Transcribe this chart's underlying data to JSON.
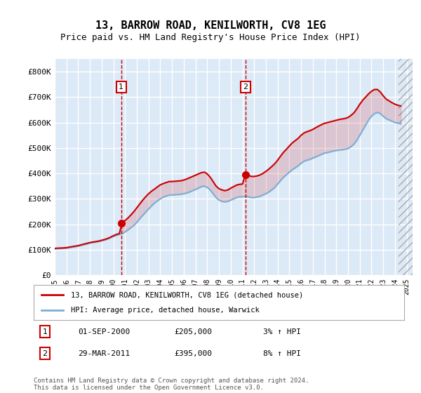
{
  "title": "13, BARROW ROAD, KENILWORTH, CV8 1EG",
  "subtitle": "Price paid vs. HM Land Registry's House Price Index (HPI)",
  "ylabel_ticks": [
    "£0",
    "£100K",
    "£200K",
    "£300K",
    "£400K",
    "£500K",
    "£600K",
    "£700K",
    "£800K"
  ],
  "ytick_values": [
    0,
    100000,
    200000,
    300000,
    400000,
    500000,
    600000,
    700000,
    800000
  ],
  "ylim": [
    0,
    850000
  ],
  "xlim_start": 1995.0,
  "xlim_end": 2025.5,
  "background_color": "#ffffff",
  "plot_bg_color": "#dce9f7",
  "grid_color": "#ffffff",
  "line1_color": "#cc0000",
  "line2_color": "#7ab0d4",
  "transaction1_date": 2000.67,
  "transaction1_price": 205000,
  "transaction2_date": 2011.25,
  "transaction2_price": 395000,
  "legend_label1": "13, BARROW ROAD, KENILWORTH, CV8 1EG (detached house)",
  "legend_label2": "HPI: Average price, detached house, Warwick",
  "annotation1_label": "1",
  "annotation1_date": "01-SEP-2000",
  "annotation1_price": "£205,000",
  "annotation1_hpi": "3% ↑ HPI",
  "annotation2_label": "2",
  "annotation2_date": "29-MAR-2011",
  "annotation2_price": "£395,000",
  "annotation2_hpi": "8% ↑ HPI",
  "footer": "Contains HM Land Registry data © Crown copyright and database right 2024.\nThis data is licensed under the Open Government Licence v3.0.",
  "hpi_years": [
    1995.0,
    1995.25,
    1995.5,
    1995.75,
    1996.0,
    1996.25,
    1996.5,
    1996.75,
    1997.0,
    1997.25,
    1997.5,
    1997.75,
    1998.0,
    1998.25,
    1998.5,
    1998.75,
    1999.0,
    1999.25,
    1999.5,
    1999.75,
    2000.0,
    2000.25,
    2000.5,
    2000.75,
    2001.0,
    2001.25,
    2001.5,
    2001.75,
    2002.0,
    2002.25,
    2002.5,
    2002.75,
    2003.0,
    2003.25,
    2003.5,
    2003.75,
    2004.0,
    2004.25,
    2004.5,
    2004.75,
    2005.0,
    2005.25,
    2005.5,
    2005.75,
    2006.0,
    2006.25,
    2006.5,
    2006.75,
    2007.0,
    2007.25,
    2007.5,
    2007.75,
    2008.0,
    2008.25,
    2008.5,
    2008.75,
    2009.0,
    2009.25,
    2009.5,
    2009.75,
    2010.0,
    2010.25,
    2010.5,
    2010.75,
    2011.0,
    2011.25,
    2011.5,
    2011.75,
    2012.0,
    2012.25,
    2012.5,
    2012.75,
    2013.0,
    2013.25,
    2013.5,
    2013.75,
    2014.0,
    2014.25,
    2014.5,
    2014.75,
    2015.0,
    2015.25,
    2015.5,
    2015.75,
    2016.0,
    2016.25,
    2016.5,
    2016.75,
    2017.0,
    2017.25,
    2017.5,
    2017.75,
    2018.0,
    2018.25,
    2018.5,
    2018.75,
    2019.0,
    2019.25,
    2019.5,
    2019.75,
    2020.0,
    2020.25,
    2020.5,
    2020.75,
    2021.0,
    2021.25,
    2021.5,
    2021.75,
    2022.0,
    2022.25,
    2022.5,
    2022.75,
    2023.0,
    2023.25,
    2023.5,
    2023.75,
    2024.0,
    2024.25,
    2024.5
  ],
  "hpi_values": [
    103000,
    104000,
    104500,
    105000,
    106000,
    108000,
    110000,
    112000,
    114000,
    117000,
    120000,
    123000,
    126000,
    128000,
    130000,
    132000,
    135000,
    138000,
    142000,
    147000,
    152000,
    156000,
    160000,
    164000,
    170000,
    178000,
    187000,
    196000,
    208000,
    222000,
    235000,
    248000,
    260000,
    272000,
    283000,
    292000,
    300000,
    307000,
    311000,
    315000,
    315000,
    316000,
    317000,
    318000,
    320000,
    323000,
    327000,
    332000,
    337000,
    342000,
    348000,
    350000,
    345000,
    335000,
    320000,
    305000,
    295000,
    290000,
    288000,
    290000,
    295000,
    300000,
    305000,
    308000,
    308000,
    310000,
    308000,
    305000,
    305000,
    307000,
    310000,
    315000,
    320000,
    327000,
    335000,
    345000,
    358000,
    372000,
    385000,
    395000,
    405000,
    415000,
    422000,
    430000,
    440000,
    448000,
    452000,
    455000,
    460000,
    465000,
    470000,
    475000,
    480000,
    482000,
    485000,
    488000,
    490000,
    492000,
    493000,
    495000,
    498000,
    505000,
    515000,
    530000,
    550000,
    570000,
    590000,
    610000,
    625000,
    635000,
    640000,
    635000,
    625000,
    615000,
    610000,
    605000,
    600000,
    598000,
    595000
  ],
  "property_years": [
    1995.0,
    1995.25,
    1995.5,
    1995.75,
    1996.0,
    1996.25,
    1996.5,
    1996.75,
    1997.0,
    1997.25,
    1997.5,
    1997.75,
    1998.0,
    1998.25,
    1998.5,
    1998.75,
    1999.0,
    1999.25,
    1999.5,
    1999.75,
    2000.0,
    2000.25,
    2000.5,
    2000.75,
    2001.0,
    2001.25,
    2001.5,
    2001.75,
    2002.0,
    2002.25,
    2002.5,
    2002.75,
    2003.0,
    2003.25,
    2003.5,
    2003.75,
    2004.0,
    2004.25,
    2004.5,
    2004.75,
    2005.0,
    2005.25,
    2005.5,
    2005.75,
    2006.0,
    2006.25,
    2006.5,
    2006.75,
    2007.0,
    2007.25,
    2007.5,
    2007.75,
    2008.0,
    2008.25,
    2008.5,
    2008.75,
    2009.0,
    2009.25,
    2009.5,
    2009.75,
    2010.0,
    2010.25,
    2010.5,
    2010.75,
    2011.0,
    2011.25,
    2011.5,
    2011.75,
    2012.0,
    2012.25,
    2012.5,
    2012.75,
    2013.0,
    2013.25,
    2013.5,
    2013.75,
    2014.0,
    2014.25,
    2014.5,
    2014.75,
    2015.0,
    2015.25,
    2015.5,
    2015.75,
    2016.0,
    2016.25,
    2016.5,
    2016.75,
    2017.0,
    2017.25,
    2017.5,
    2017.75,
    2018.0,
    2018.25,
    2018.5,
    2018.75,
    2019.0,
    2019.25,
    2019.5,
    2019.75,
    2020.0,
    2020.25,
    2020.5,
    2020.75,
    2021.0,
    2021.25,
    2021.5,
    2021.75,
    2022.0,
    2022.25,
    2022.5,
    2022.75,
    2023.0,
    2023.25,
    2023.5,
    2023.75,
    2024.0,
    2024.25,
    2024.5
  ],
  "property_values": [
    105000,
    106000,
    106500,
    107000,
    108000,
    110000,
    112000,
    114000,
    116000,
    119000,
    122000,
    125000,
    128000,
    130000,
    132000,
    134000,
    137000,
    140000,
    144000,
    149000,
    155000,
    160000,
    163000,
    205000,
    215000,
    225000,
    237000,
    250000,
    265000,
    280000,
    295000,
    308000,
    320000,
    330000,
    338000,
    347000,
    355000,
    360000,
    364000,
    368000,
    368000,
    369000,
    370000,
    371000,
    374000,
    378000,
    383000,
    388000,
    393000,
    398000,
    403000,
    405000,
    398000,
    385000,
    368000,
    350000,
    340000,
    335000,
    332000,
    335000,
    342000,
    348000,
    354000,
    357000,
    358000,
    395000,
    393000,
    388000,
    388000,
    390000,
    394000,
    400000,
    408000,
    417000,
    427000,
    438000,
    452000,
    468000,
    483000,
    495000,
    508000,
    520000,
    529000,
    538000,
    550000,
    559000,
    564000,
    568000,
    573000,
    580000,
    586000,
    592000,
    597000,
    600000,
    603000,
    606000,
    609000,
    612000,
    614000,
    616000,
    620000,
    628000,
    638000,
    654000,
    672000,
    688000,
    700000,
    713000,
    723000,
    730000,
    730000,
    720000,
    705000,
    692000,
    685000,
    678000,
    672000,
    668000,
    665000
  ]
}
